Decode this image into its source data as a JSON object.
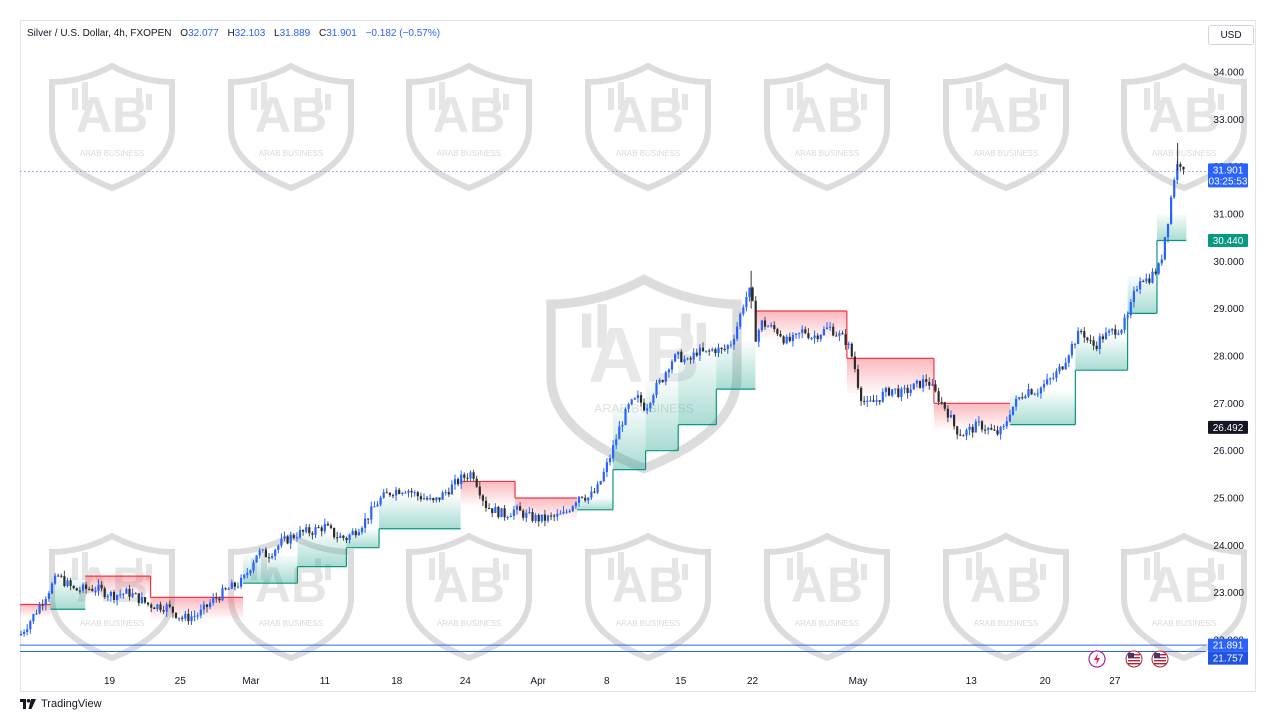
{
  "legend": {
    "symbol": "Silver / U.S. Dollar, 4h, FXOPEN",
    "o_label": "O",
    "o_value": "32.077",
    "h_label": "H",
    "h_value": "32.103",
    "l_label": "L",
    "l_value": "31.889",
    "c_label": "C",
    "c_value": "31.901",
    "change": "−0.182 (−0.57%)"
  },
  "currency": "USD",
  "watermark": {
    "text": "ARAB BUSINESS"
  },
  "footer": {
    "brand": "TradingView"
  },
  "colors": {
    "up": "#089981",
    "down": "#f23645",
    "candle": "#2962ff",
    "candle_alt": "#4a4a4a",
    "price_line": "#2962ff",
    "support_line": "#2962ff",
    "supertrend_up": "#089981",
    "supertrend_down": "#f23645"
  },
  "badges": {
    "last_price": "31.901",
    "countdown": "03:25:53",
    "supertrend": "30.440",
    "cursor": "26.492",
    "support1": "21.891",
    "support2": "21.757"
  },
  "chart_data": {
    "type": "candlestick",
    "title": "Silver / U.S. Dollar, 4h, FXOPEN",
    "ylim": [
      21.76,
      34.4
    ],
    "yticks": [
      "34.000",
      "33.000",
      "32.000",
      "31.000",
      "30.000",
      "29.000",
      "28.000",
      "27.000",
      "26.000",
      "25.000",
      "24.000",
      "23.000",
      "22.000"
    ],
    "xticks": [
      {
        "label": "19",
        "t": 0.04
      },
      {
        "label": "25",
        "t": 0.105
      },
      {
        "label": "Mar",
        "t": 0.17
      },
      {
        "label": "11",
        "t": 0.238
      },
      {
        "label": "18",
        "t": 0.304
      },
      {
        "label": "24",
        "t": 0.367
      },
      {
        "label": "Apr",
        "t": 0.434
      },
      {
        "label": "8",
        "t": 0.497
      },
      {
        "label": "15",
        "t": 0.565
      },
      {
        "label": "22",
        "t": 0.631
      },
      {
        "label": "May",
        "t": 0.728
      },
      {
        "label": "13",
        "t": 0.832
      },
      {
        "label": "20",
        "t": 0.9
      },
      {
        "label": "27",
        "t": 0.964
      }
    ],
    "price_path": [
      [
        0.0,
        22.1
      ],
      [
        0.012,
        22.5
      ],
      [
        0.025,
        23.0
      ],
      [
        0.035,
        23.35
      ],
      [
        0.05,
        23.05
      ],
      [
        0.068,
        23.1
      ],
      [
        0.085,
        22.95
      ],
      [
        0.1,
        23.0
      ],
      [
        0.118,
        22.75
      ],
      [
        0.135,
        22.7
      ],
      [
        0.15,
        22.45
      ],
      [
        0.165,
        22.55
      ],
      [
        0.178,
        22.85
      ],
      [
        0.19,
        23.05
      ],
      [
        0.205,
        23.25
      ],
      [
        0.218,
        23.85
      ],
      [
        0.228,
        23.8
      ],
      [
        0.24,
        24.05
      ],
      [
        0.255,
        24.25
      ],
      [
        0.268,
        24.3
      ],
      [
        0.28,
        24.4
      ],
      [
        0.29,
        24.2
      ],
      [
        0.3,
        24.15
      ],
      [
        0.31,
        24.35
      ],
      [
        0.318,
        24.55
      ],
      [
        0.33,
        24.95
      ],
      [
        0.342,
        25.15
      ],
      [
        0.355,
        25.2
      ],
      [
        0.365,
        25.05
      ],
      [
        0.372,
        25.0
      ],
      [
        0.38,
        24.9
      ],
      [
        0.39,
        25.1
      ],
      [
        0.405,
        25.4
      ],
      [
        0.416,
        25.55
      ],
      [
        0.422,
        25.2
      ],
      [
        0.428,
        24.85
      ],
      [
        0.435,
        24.75
      ],
      [
        0.445,
        24.65
      ],
      [
        0.455,
        24.75
      ],
      [
        0.468,
        24.6
      ],
      [
        0.48,
        24.55
      ],
      [
        0.492,
        24.6
      ],
      [
        0.5,
        24.65
      ],
      [
        0.507,
        24.85
      ],
      [
        0.515,
        25.1
      ],
      [
        0.522,
        25.0
      ],
      [
        0.53,
        25.15
      ],
      [
        0.538,
        25.6
      ],
      [
        0.545,
        26.05
      ],
      [
        0.552,
        26.55
      ],
      [
        0.56,
        26.95
      ],
      [
        0.568,
        27.1
      ],
      [
        0.575,
        26.9
      ],
      [
        0.582,
        27.25
      ],
      [
        0.59,
        27.5
      ],
      [
        0.598,
        27.9
      ],
      [
        0.606,
        28.0
      ],
      [
        0.614,
        27.85
      ],
      [
        0.622,
        28.1
      ],
      [
        0.63,
        28.05
      ],
      [
        0.638,
        28.15
      ],
      [
        0.646,
        28.1
      ],
      [
        0.654,
        28.3
      ],
      [
        0.66,
        28.7
      ],
      [
        0.666,
        29.2
      ],
      [
        0.672,
        29.4
      ],
      [
        0.676,
        28.4
      ],
      [
        0.682,
        28.7
      ],
      [
        0.69,
        28.6
      ],
      [
        0.698,
        28.5
      ],
      [
        0.704,
        28.3
      ],
      [
        0.712,
        28.35
      ],
      [
        0.72,
        28.55
      ],
      [
        0.728,
        28.4
      ],
      [
        0.736,
        28.5
      ],
      [
        0.744,
        28.6
      ],
      [
        0.752,
        28.45
      ],
      [
        0.76,
        28.3
      ],
      [
        0.766,
        27.9
      ],
      [
        0.772,
        27.2
      ],
      [
        0.778,
        26.95
      ],
      [
        0.786,
        27.05
      ],
      [
        0.794,
        27.2
      ],
      [
        0.802,
        27.3
      ],
      [
        0.81,
        27.2
      ],
      [
        0.818,
        27.3
      ],
      [
        0.826,
        27.4
      ],
      [
        0.834,
        27.5
      ],
      [
        0.84,
        27.25
      ],
      [
        0.846,
        27.05
      ],
      [
        0.852,
        26.85
      ],
      [
        0.86,
        26.45
      ],
      [
        0.866,
        26.35
      ],
      [
        0.874,
        26.45
      ],
      [
        0.882,
        26.55
      ],
      [
        0.89,
        26.45
      ],
      [
        0.897,
        26.35
      ],
      [
        0.904,
        26.45
      ],
      [
        0.91,
        26.85
      ],
      [
        0.918,
        27.1
      ],
      [
        0.926,
        27.3
      ],
      [
        0.934,
        27.25
      ],
      [
        0.942,
        27.4
      ],
      [
        0.95,
        27.55
      ],
      [
        0.958,
        27.8
      ],
      [
        0.964,
        28.1
      ],
      [
        0.97,
        28.35
      ],
      [
        0.976,
        28.55
      ],
      [
        0.982,
        28.3
      ],
      [
        0.988,
        28.2
      ],
      [
        0.994,
        28.4
      ],
      [
        1.0,
        28.45
      ],
      [
        1.006,
        28.55
      ],
      [
        1.012,
        28.6
      ],
      [
        1.018,
        28.8
      ],
      [
        1.024,
        29.3
      ],
      [
        1.03,
        29.7
      ],
      [
        1.036,
        29.6
      ],
      [
        1.042,
        29.75
      ],
      [
        1.048,
        29.9
      ],
      [
        1.052,
        30.5
      ],
      [
        1.056,
        31.0
      ],
      [
        1.06,
        31.7
      ],
      [
        1.064,
        32.05
      ],
      [
        1.068,
        32.1
      ],
      [
        1.072,
        31.9
      ]
    ],
    "supertrend": [
      {
        "t0": 0.0,
        "t1": 0.028,
        "value": 22.75,
        "dir": "down"
      },
      {
        "t0": 0.028,
        "t1": 0.06,
        "value": 22.65,
        "dir": "up"
      },
      {
        "t0": 0.06,
        "t1": 0.12,
        "value": 23.35,
        "dir": "down"
      },
      {
        "t0": 0.12,
        "t1": 0.205,
        "value": 22.9,
        "dir": "down"
      },
      {
        "t0": 0.205,
        "t1": 0.255,
        "value": 23.2,
        "dir": "up"
      },
      {
        "t0": 0.255,
        "t1": 0.3,
        "value": 23.55,
        "dir": "up"
      },
      {
        "t0": 0.3,
        "t1": 0.33,
        "value": 23.95,
        "dir": "up"
      },
      {
        "t0": 0.33,
        "t1": 0.405,
        "value": 24.35,
        "dir": "up"
      },
      {
        "t0": 0.405,
        "t1": 0.455,
        "value": 25.35,
        "dir": "down"
      },
      {
        "t0": 0.455,
        "t1": 0.512,
        "value": 25.0,
        "dir": "down"
      },
      {
        "t0": 0.512,
        "t1": 0.545,
        "value": 24.75,
        "dir": "up"
      },
      {
        "t0": 0.545,
        "t1": 0.575,
        "value": 25.6,
        "dir": "up"
      },
      {
        "t0": 0.575,
        "t1": 0.605,
        "value": 26.0,
        "dir": "up"
      },
      {
        "t0": 0.605,
        "t1": 0.64,
        "value": 26.55,
        "dir": "up"
      },
      {
        "t0": 0.64,
        "t1": 0.676,
        "value": 27.3,
        "dir": "up"
      },
      {
        "t0": 0.676,
        "t1": 0.76,
        "value": 28.95,
        "dir": "down"
      },
      {
        "t0": 0.76,
        "t1": 0.84,
        "value": 27.95,
        "dir": "down"
      },
      {
        "t0": 0.84,
        "t1": 0.91,
        "value": 27.0,
        "dir": "down"
      },
      {
        "t0": 0.91,
        "t1": 0.97,
        "value": 26.55,
        "dir": "up"
      },
      {
        "t0": 0.97,
        "t1": 1.018,
        "value": 27.7,
        "dir": "up"
      },
      {
        "t0": 1.018,
        "t1": 1.045,
        "value": 28.9,
        "dir": "up"
      },
      {
        "t0": 1.045,
        "t1": 1.072,
        "value": 30.44,
        "dir": "up"
      }
    ],
    "last_price": 31.901,
    "supertrend_value": 30.44,
    "cursor_price": 26.492,
    "support_levels": [
      21.891,
      21.757
    ],
    "price_axis_side": "right",
    "grid": false
  }
}
